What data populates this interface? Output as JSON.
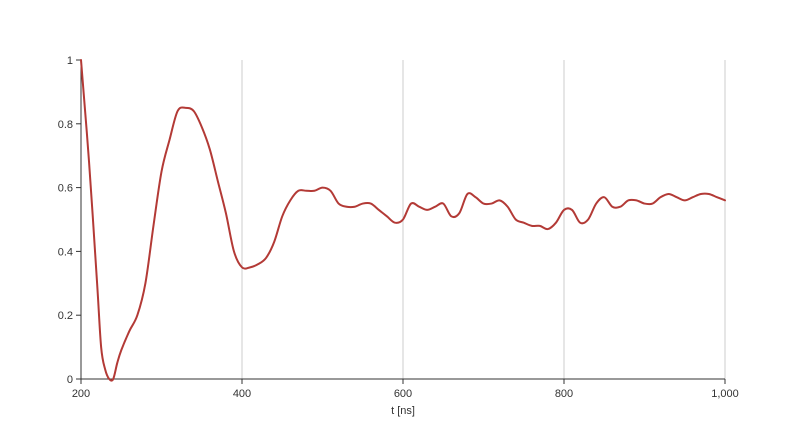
{
  "chart_data": {
    "type": "line",
    "xlabel": "t [ns]",
    "ylabel": "",
    "xlim": [
      200,
      1000
    ],
    "ylim": [
      0,
      1
    ],
    "x_ticks": [
      200,
      400,
      600,
      800,
      1000
    ],
    "x_tick_labels": [
      "200",
      "400",
      "600",
      "800",
      "1,000"
    ],
    "y_ticks": [
      0,
      0.2,
      0.4,
      0.6,
      0.8,
      1
    ],
    "y_tick_labels": [
      "0",
      "0.2",
      "0.4",
      "0.6",
      "0.8",
      "1"
    ],
    "grid": {
      "vertical": true,
      "horizontal": false
    },
    "colors": {
      "line": "#b33a36",
      "grid": "#cccccc",
      "axis": "#333333"
    },
    "series": [
      {
        "x": [
          200,
          210,
          220,
          225,
          230,
          235,
          240,
          245,
          250,
          260,
          270,
          280,
          290,
          300,
          310,
          320,
          330,
          340,
          350,
          360,
          370,
          380,
          390,
          400,
          410,
          420,
          430,
          440,
          450,
          460,
          470,
          480,
          490,
          500,
          510,
          520,
          530,
          540,
          550,
          560,
          570,
          580,
          590,
          600,
          610,
          620,
          630,
          640,
          650,
          660,
          670,
          680,
          690,
          700,
          710,
          720,
          730,
          740,
          750,
          760,
          770,
          780,
          790,
          800,
          810,
          820,
          830,
          840,
          850,
          860,
          870,
          880,
          890,
          900,
          910,
          920,
          930,
          940,
          950,
          960,
          970,
          980,
          990,
          1000
        ],
        "y": [
          1.0,
          0.68,
          0.3,
          0.1,
          0.03,
          0.0,
          0.0,
          0.05,
          0.09,
          0.15,
          0.2,
          0.3,
          0.48,
          0.65,
          0.75,
          0.84,
          0.85,
          0.84,
          0.79,
          0.72,
          0.62,
          0.52,
          0.4,
          0.35,
          0.35,
          0.36,
          0.38,
          0.43,
          0.51,
          0.56,
          0.59,
          0.59,
          0.59,
          0.6,
          0.59,
          0.55,
          0.54,
          0.54,
          0.55,
          0.55,
          0.53,
          0.51,
          0.49,
          0.5,
          0.55,
          0.54,
          0.53,
          0.54,
          0.55,
          0.51,
          0.52,
          0.58,
          0.57,
          0.55,
          0.55,
          0.56,
          0.54,
          0.5,
          0.49,
          0.48,
          0.48,
          0.47,
          0.49,
          0.53,
          0.53,
          0.49,
          0.5,
          0.55,
          0.57,
          0.54,
          0.54,
          0.56,
          0.56,
          0.55,
          0.55,
          0.57,
          0.58,
          0.57,
          0.56,
          0.57,
          0.58,
          0.58,
          0.57,
          0.56
        ]
      }
    ]
  }
}
